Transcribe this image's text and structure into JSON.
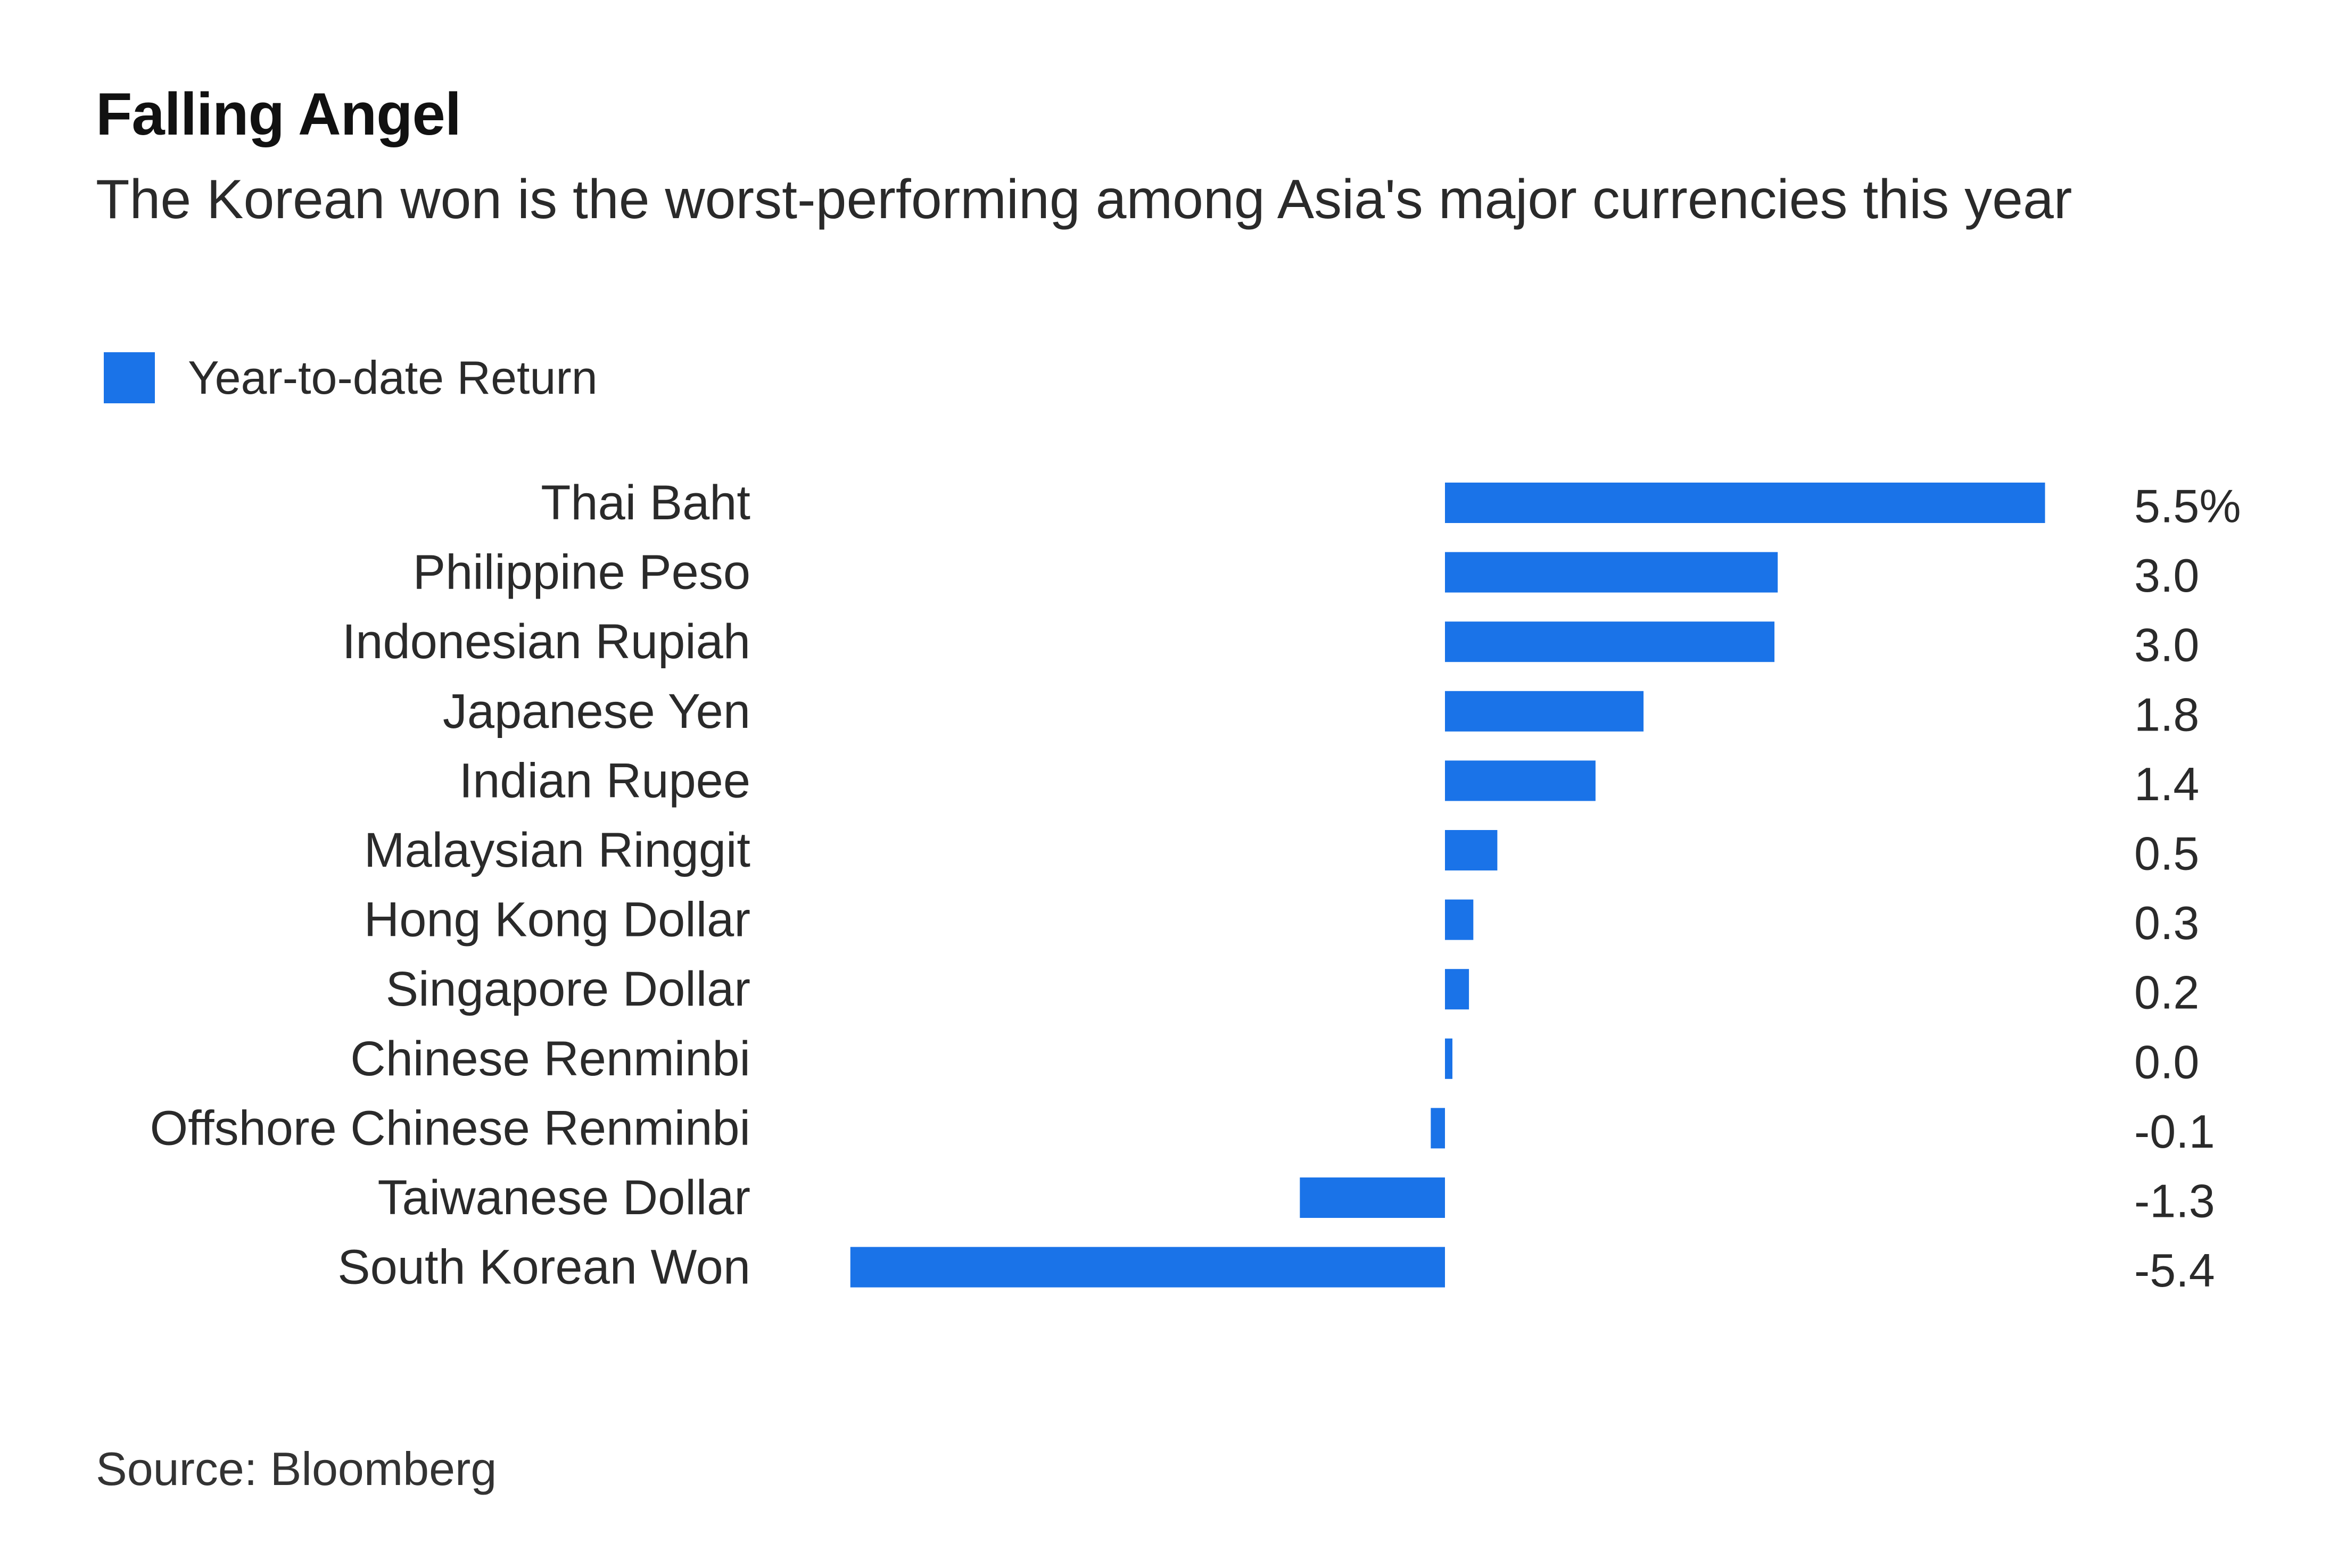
{
  "chart_data": {
    "type": "bar",
    "orientation": "horizontal",
    "title": "Falling Angel",
    "subtitle": "The Korean won is the worst-performing among Asia's major currencies this year",
    "categories": [
      "Thai Baht",
      "Philippine Peso",
      "Indonesian Rupiah",
      "Japanese Yen",
      "Indian Rupee",
      "Malaysian Ringgit",
      "Hong Kong Dollar",
      "Singapore Dollar",
      "Chinese Renminbi",
      "Offshore Chinese Renminbi",
      "Taiwanese Dollar",
      "South Korean Won"
    ],
    "series": [
      {
        "name": "Year-to-date Return",
        "color": "#1a73e8",
        "values": [
          5.5,
          3.05,
          3.02,
          1.82,
          1.38,
          0.48,
          0.26,
          0.22,
          0.04,
          -0.13,
          -1.33,
          -5.45
        ]
      }
    ],
    "value_labels": [
      "5.5%",
      "3.0",
      "3.0",
      "1.8",
      "1.4",
      "0.5",
      "0.3",
      "0.2",
      "0.0",
      "-0.1",
      "-1.3",
      "-5.4"
    ],
    "xlim": [
      -5.6,
      5.6
    ],
    "grid": false,
    "legend_position": "top-left",
    "source": "Source: Bloomberg"
  }
}
